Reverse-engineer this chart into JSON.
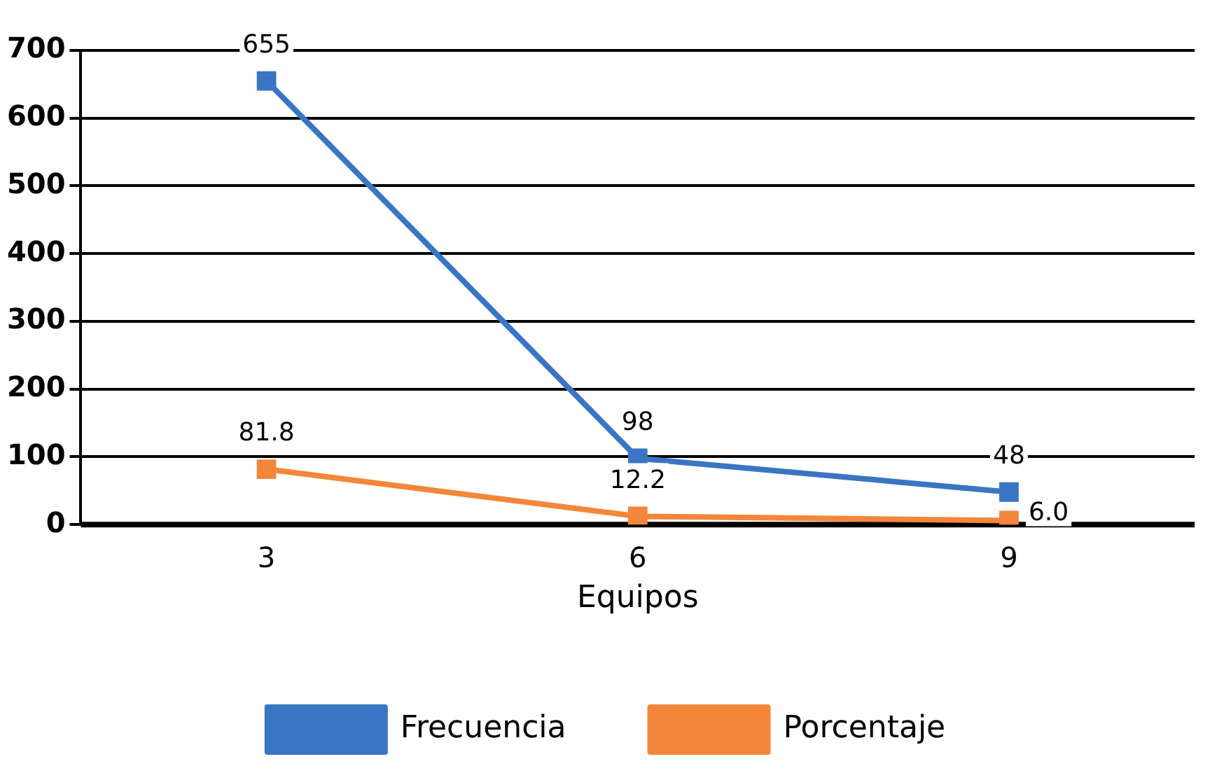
{
  "chart_data": {
    "type": "line",
    "xlabel": "Equipos",
    "categories": [
      "3",
      "6",
      "9"
    ],
    "series": [
      {
        "name": "Frecuencia",
        "color": "#3a75c4",
        "values": [
          655,
          98,
          48
        ],
        "value_labels": [
          "655",
          "98",
          "48"
        ]
      },
      {
        "name": "Porcentaje",
        "color": "#f4863b",
        "values": [
          81.8,
          12.2,
          6.0
        ],
        "value_labels": [
          "81.8",
          "12.2",
          "6.0"
        ]
      }
    ],
    "ylim": [
      0,
      700
    ],
    "yticks": [
      0,
      100,
      200,
      300,
      400,
      500,
      600,
      700
    ],
    "grid": "y",
    "legend": "bottom",
    "marker": "square",
    "line_style": "solid"
  }
}
